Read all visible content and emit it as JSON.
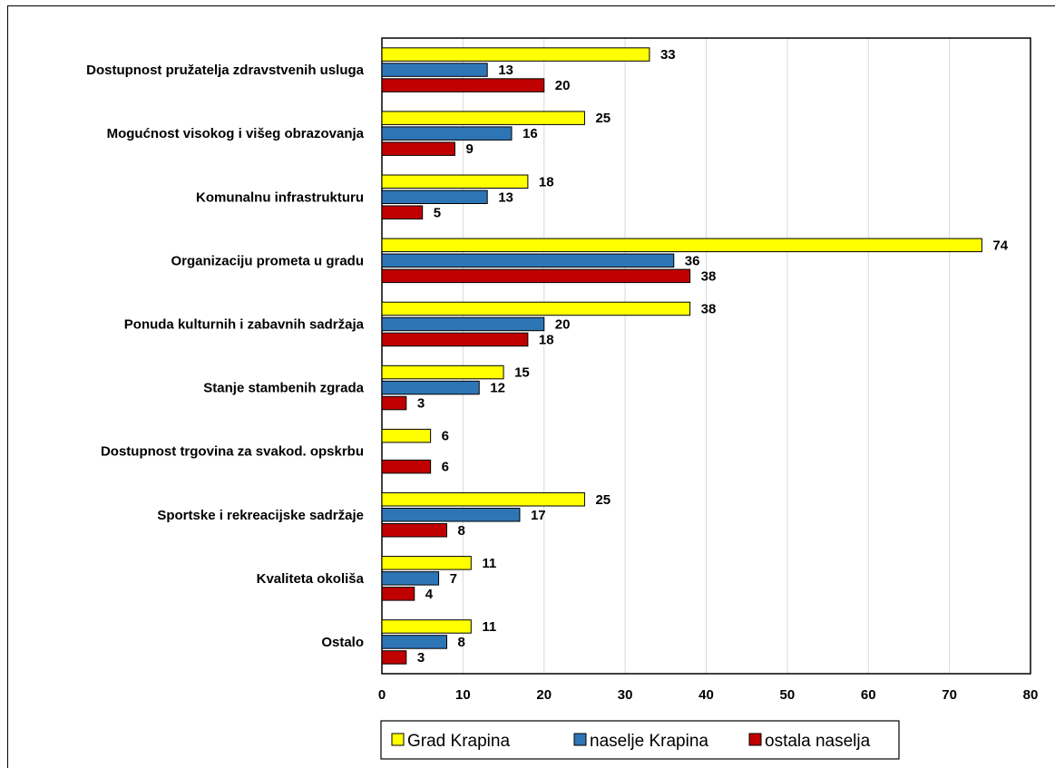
{
  "chart_data": {
    "type": "bar",
    "orientation": "horizontal",
    "categories": [
      "Dostupnost pružatelja zdravstvenih usluga",
      "Mogućnost visokog i višeg obrazovanja",
      "Komunalnu infrastrukturu",
      "Organizaciju prometa u gradu",
      "Ponuda kulturnih i zabavnih sadržaja",
      "Stanje stambenih zgrada",
      "Dostupnost trgovina za svakod. opskrbu",
      "Sportske i rekreacijske sadržaje",
      "Kvaliteta okoliša",
      "Ostalo"
    ],
    "series": [
      {
        "name": "Grad Krapina",
        "color": "#FFFF00",
        "values": [
          33,
          25,
          18,
          74,
          38,
          15,
          6,
          25,
          11,
          11
        ]
      },
      {
        "name": "naselje Krapina",
        "color": "#2E75B6",
        "values": [
          13,
          16,
          13,
          36,
          20,
          12,
          null,
          17,
          7,
          8
        ]
      },
      {
        "name": "ostala naselja",
        "color": "#C00000",
        "values": [
          20,
          9,
          5,
          38,
          18,
          3,
          6,
          8,
          4,
          3
        ]
      }
    ],
    "xlim": [
      0,
      80
    ],
    "xticks": [
      "0",
      "10",
      "20",
      "30",
      "40",
      "50",
      "60",
      "70",
      "80"
    ],
    "grid": true,
    "legend_position": "bottom",
    "title": "",
    "xlabel": "",
    "ylabel": ""
  }
}
